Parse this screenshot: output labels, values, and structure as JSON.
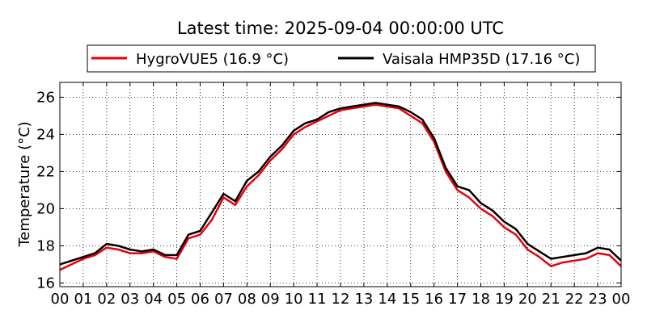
{
  "chart_data": {
    "type": "line",
    "title": "Latest time: 2025-09-04 00:00:00 UTC",
    "xlabel": "",
    "ylabel": "Temperature (°C)",
    "xlim": [
      0,
      24
    ],
    "ylim": [
      15.8,
      26.8
    ],
    "grid": true,
    "legend_position": "top-center",
    "x_ticks": [
      "00",
      "01",
      "02",
      "03",
      "04",
      "05",
      "06",
      "07",
      "08",
      "09",
      "10",
      "11",
      "12",
      "13",
      "14",
      "15",
      "16",
      "17",
      "18",
      "19",
      "20",
      "21",
      "22",
      "23",
      "00"
    ],
    "y_ticks": [
      16,
      18,
      20,
      22,
      24,
      26
    ],
    "x": [
      0,
      0.5,
      1,
      1.5,
      2,
      2.5,
      3,
      3.5,
      4,
      4.5,
      5,
      5.5,
      6,
      6.5,
      7,
      7.5,
      8,
      8.5,
      9,
      9.5,
      10,
      10.5,
      11,
      11.5,
      12,
      12.5,
      13,
      13.5,
      14,
      14.5,
      15,
      15.5,
      16,
      16.5,
      17,
      17.5,
      18,
      18.5,
      19,
      19.5,
      20,
      20.5,
      21,
      21.5,
      22,
      22.5,
      23,
      23.5,
      24
    ],
    "series": [
      {
        "name": "HygroVUE5 (16.9 °C)",
        "color": "#e8000b",
        "values": [
          16.7,
          17.0,
          17.3,
          17.5,
          17.9,
          17.8,
          17.6,
          17.6,
          17.7,
          17.4,
          17.3,
          18.4,
          18.6,
          19.4,
          20.6,
          20.2,
          21.2,
          21.8,
          22.6,
          23.2,
          24.0,
          24.4,
          24.7,
          25.0,
          25.3,
          25.4,
          25.5,
          25.6,
          25.5,
          25.4,
          25.0,
          24.6,
          23.6,
          22.0,
          21.0,
          20.6,
          20.0,
          19.6,
          19.0,
          18.6,
          17.8,
          17.4,
          16.9,
          17.1,
          17.2,
          17.3,
          17.6,
          17.5,
          16.9
        ]
      },
      {
        "name": "Vaisala HMP35D (17.16 °C)",
        "color": "#000000",
        "values": [
          17.0,
          17.2,
          17.4,
          17.6,
          18.1,
          18.0,
          17.8,
          17.7,
          17.8,
          17.5,
          17.5,
          18.6,
          18.8,
          19.8,
          20.8,
          20.4,
          21.5,
          22.0,
          22.8,
          23.4,
          24.2,
          24.6,
          24.8,
          25.2,
          25.4,
          25.5,
          25.6,
          25.7,
          25.6,
          25.5,
          25.2,
          24.8,
          23.8,
          22.2,
          21.2,
          21.0,
          20.3,
          19.9,
          19.3,
          18.9,
          18.1,
          17.7,
          17.3,
          17.4,
          17.5,
          17.6,
          17.9,
          17.8,
          17.2
        ]
      }
    ]
  }
}
